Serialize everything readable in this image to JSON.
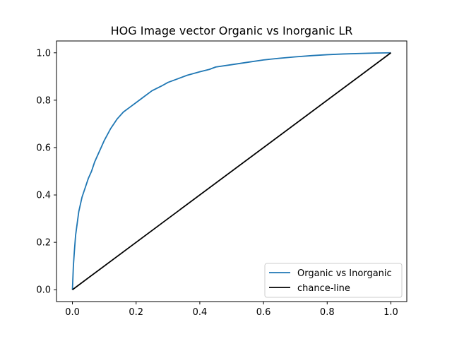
{
  "chart_data": {
    "type": "line",
    "title": "HOG Image vector Organic vs Inorganic LR",
    "xlabel": "",
    "ylabel": "",
    "xlim": [
      -0.05,
      1.05
    ],
    "ylim": [
      -0.05,
      1.05
    ],
    "x_ticks": [
      "0.0",
      "0.2",
      "0.4",
      "0.6",
      "0.8",
      "1.0"
    ],
    "y_ticks": [
      "0.0",
      "0.2",
      "0.4",
      "0.6",
      "0.8",
      "1.0"
    ],
    "grid": false,
    "legend_position": "lower-right",
    "series": [
      {
        "name": "Organic vs Inorganic",
        "color": "#1f77b4",
        "x": [
          0.0,
          0.003,
          0.006,
          0.01,
          0.015,
          0.02,
          0.025,
          0.03,
          0.04,
          0.05,
          0.06,
          0.07,
          0.08,
          0.09,
          0.1,
          0.12,
          0.14,
          0.16,
          0.18,
          0.2,
          0.22,
          0.25,
          0.28,
          0.3,
          0.33,
          0.36,
          0.4,
          0.43,
          0.45,
          0.5,
          0.55,
          0.6,
          0.65,
          0.7,
          0.75,
          0.8,
          0.85,
          0.9,
          0.95,
          1.0
        ],
        "y": [
          0.0,
          0.1,
          0.16,
          0.23,
          0.28,
          0.33,
          0.36,
          0.39,
          0.43,
          0.47,
          0.5,
          0.54,
          0.57,
          0.6,
          0.63,
          0.68,
          0.72,
          0.75,
          0.77,
          0.79,
          0.81,
          0.84,
          0.86,
          0.875,
          0.89,
          0.905,
          0.92,
          0.93,
          0.94,
          0.95,
          0.96,
          0.97,
          0.977,
          0.983,
          0.988,
          0.992,
          0.995,
          0.997,
          0.999,
          1.0
        ]
      },
      {
        "name": "chance-line",
        "color": "#000000",
        "x": [
          0.0,
          1.0
        ],
        "y": [
          0.0,
          1.0
        ]
      }
    ]
  }
}
